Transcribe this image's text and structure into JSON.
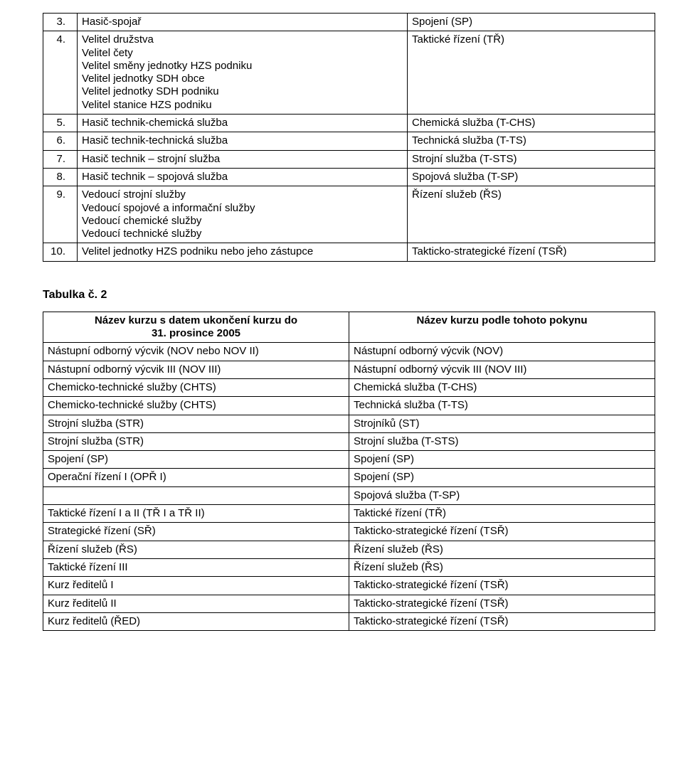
{
  "table1": {
    "rows": [
      {
        "n": "3.",
        "a": "Hasič-spojař",
        "b": "Spojení (SP)"
      },
      {
        "n": "4.",
        "a": "Velitel družstva\nVelitel čety\nVelitel směny jednotky HZS podniku\nVelitel jednotky SDH obce\nVelitel jednotky SDH podniku\nVelitel stanice HZS podniku",
        "b": "Taktické řízení (TŘ)"
      },
      {
        "n": "5.",
        "a": "Hasič technik-chemická služba",
        "b": "Chemická služba (T-CHS)"
      },
      {
        "n": "6.",
        "a": "Hasič technik-technická služba",
        "b": "Technická služba (T-TS)"
      },
      {
        "n": "7.",
        "a": "Hasič technik – strojní služba",
        "b": "Strojní služba (T-STS)"
      },
      {
        "n": "8.",
        "a": "Hasič technik – spojová služba",
        "b": "Spojová služba (T-SP)"
      },
      {
        "n": "9.",
        "a": "Vedoucí strojní služby\nVedoucí spojové a informační služby\nVedoucí chemické služby\nVedoucí technické služby",
        "b": "Řízení služeb (ŘS)"
      },
      {
        "n": "10.",
        "a": "Velitel jednotky HZS podniku nebo jeho zástupce",
        "b": "Takticko-strategické řízení (TSŘ)"
      }
    ]
  },
  "heading2": "Tabulka č. 2",
  "table2": {
    "header": {
      "a_line1": "Název kurzu s datem ukončení kurzu do",
      "a_line2": "31. prosince 2005",
      "b": "Název kurzu podle tohoto pokynu"
    },
    "rows": [
      {
        "a": "Nástupní odborný výcvik (NOV nebo NOV II)",
        "b": "Nástupní odborný výcvik (NOV)"
      },
      {
        "a": "Nástupní odborný výcvik III (NOV III)",
        "b": "Nástupní odborný výcvik III (NOV III)"
      },
      {
        "a": "Chemicko-technické služby (CHTS)",
        "b": "Chemická služba (T-CHS)"
      },
      {
        "a": "Chemicko-technické služby (CHTS)",
        "b": "Technická služba (T-TS)"
      },
      {
        "a": "Strojní služba (STR)",
        "b": "Strojníků (ST)"
      },
      {
        "a": "Strojní služba (STR)",
        "b": "Strojní služba (T-STS)"
      },
      {
        "a": "Spojení (SP)",
        "b": "Spojení (SP)"
      },
      {
        "a": "Operační řízení I (OPŘ I)",
        "b": "Spojení (SP)"
      },
      {
        "a": "",
        "b": "Spojová služba (T-SP)"
      },
      {
        "a": "Taktické řízení I a II (TŘ I a TŘ II)",
        "b": "Taktické řízení (TŘ)"
      },
      {
        "a": "Strategické řízení (SŘ)",
        "b": "Takticko-strategické řízení (TSŘ)"
      },
      {
        "a": "Řízení služeb (ŘS)",
        "b": "Řízení služeb (ŘS)"
      },
      {
        "a": "Taktické řízení III",
        "b": "Řízení služeb (ŘS)"
      },
      {
        "a": "Kurz ředitelů I",
        "b": "Takticko-strategické řízení (TSŘ)"
      },
      {
        "a": "Kurz ředitelů II",
        "b": "Takticko-strategické řízení (TSŘ)"
      },
      {
        "a": "Kurz ředitelů (ŘED)",
        "b": "Takticko-strategické řízení (TSŘ)"
      }
    ]
  }
}
